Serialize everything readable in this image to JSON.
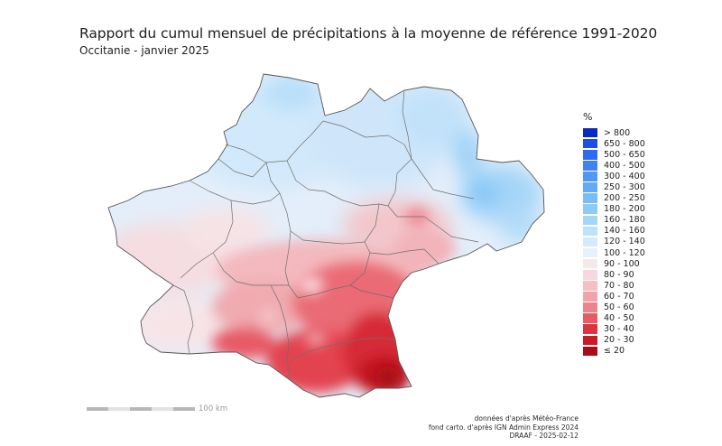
{
  "title": "Rapport du cumul mensuel de précipitations à la moyenne de référence 1991-2020",
  "subtitle": "Occitanie - janvier 2025",
  "legend": {
    "unit": "%",
    "classes": [
      {
        "label": "> 800",
        "color": "#0a2bbf"
      },
      {
        "label": "650 - 800",
        "color": "#1d4fe3"
      },
      {
        "label": "500 - 650",
        "color": "#2f6af0"
      },
      {
        "label": "400 - 500",
        "color": "#3f82f2"
      },
      {
        "label": "300 - 400",
        "color": "#4f98f4"
      },
      {
        "label": "250 - 300",
        "color": "#63abf6"
      },
      {
        "label": "200 - 250",
        "color": "#77bdf7"
      },
      {
        "label": "180 - 200",
        "color": "#8dcaf8"
      },
      {
        "label": "160 - 180",
        "color": "#a3d6f9"
      },
      {
        "label": "140 - 160",
        "color": "#bde2fb"
      },
      {
        "label": "120 - 140",
        "color": "#d3ebfb"
      },
      {
        "label": "100 - 120",
        "color": "#e6f1fb"
      },
      {
        "label": "90 - 100",
        "color": "#f7e8ea"
      },
      {
        "label": "80 - 90",
        "color": "#f8d8dc"
      },
      {
        "label": "70 - 80",
        "color": "#f5bfc4"
      },
      {
        "label": "60 - 70",
        "color": "#f2a3aa"
      },
      {
        "label": "50 - 60",
        "color": "#ee838c"
      },
      {
        "label": "40 - 50",
        "color": "#e85a66"
      },
      {
        "label": "30 - 40",
        "color": "#dc3341"
      },
      {
        "label": "20 - 30",
        "color": "#cb1a26"
      },
      {
        "label": "≤ 20",
        "color": "#a80d14"
      }
    ]
  },
  "scalebar": {
    "label": "100 km"
  },
  "credits": [
    "données d'après Météo-France",
    "fond carto. d'après IGN Admin Express 2024",
    "DRAAF - 2025-02-12"
  ],
  "colors": {
    "department_border": "#6e6e6e",
    "background": "#ffffff"
  }
}
